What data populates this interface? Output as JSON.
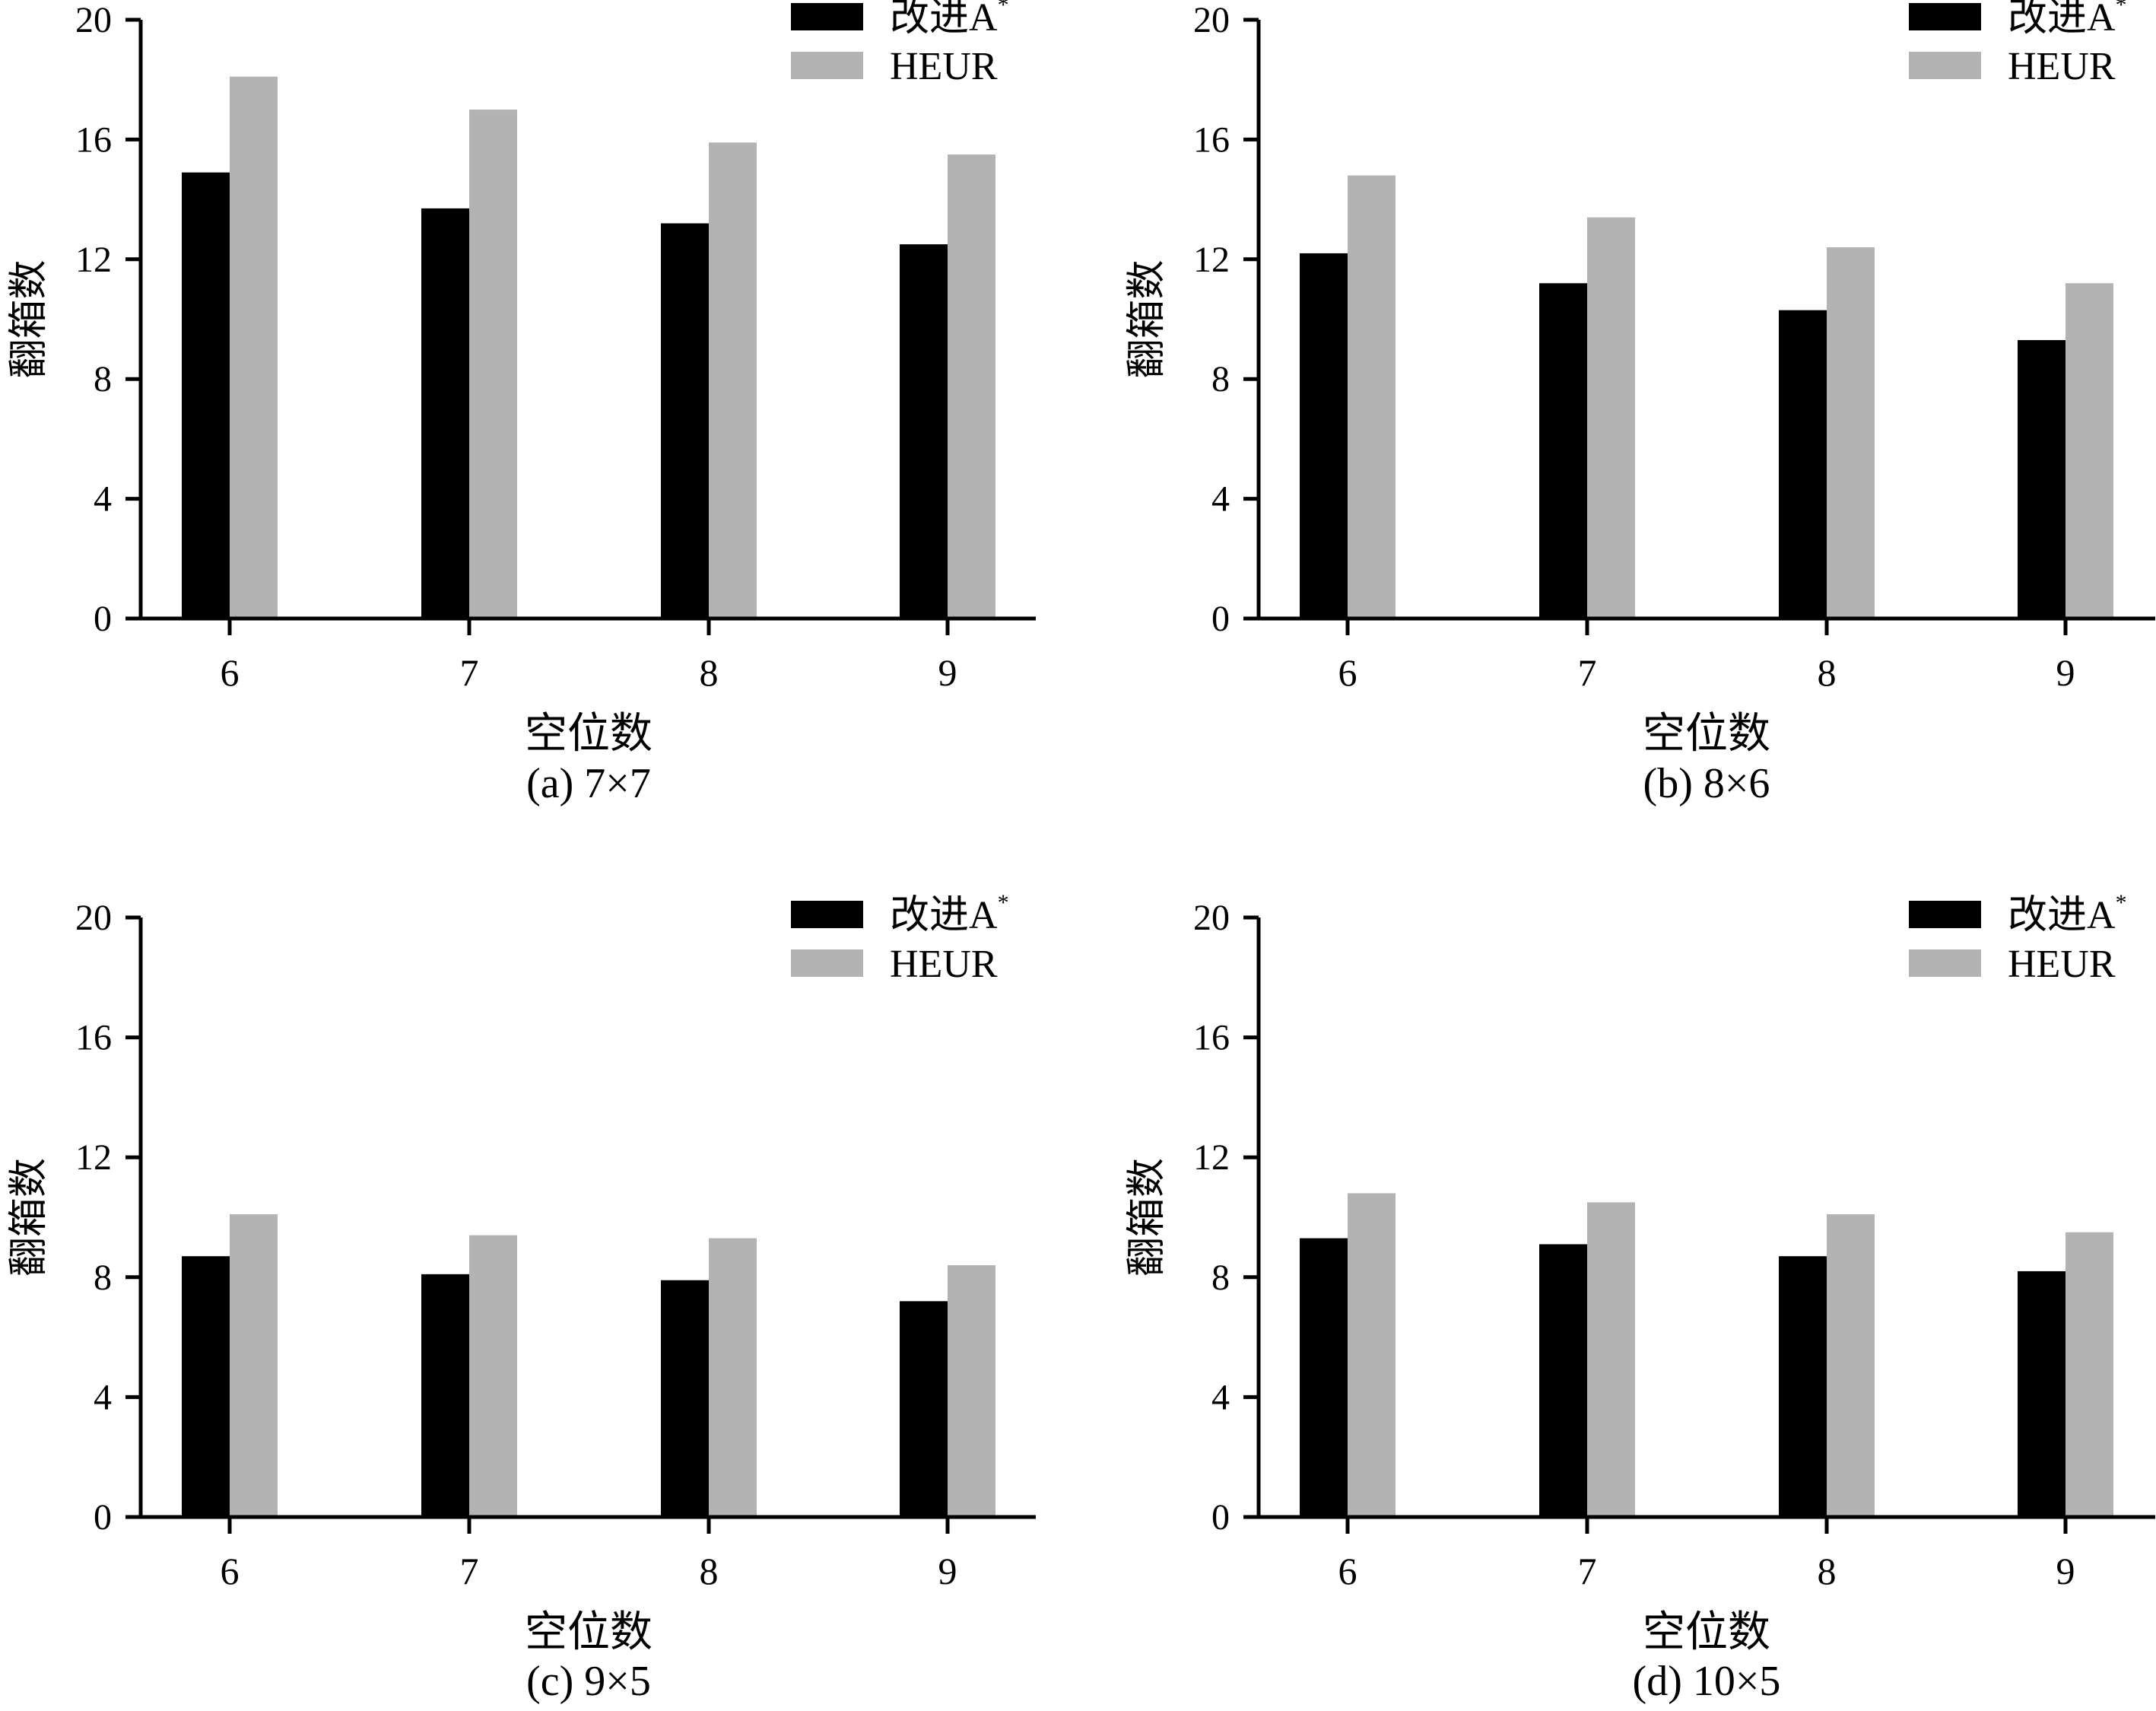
{
  "colors": {
    "series_a": "#000000",
    "series_b": "#b3b3b3",
    "axis": "#000000"
  },
  "chart_data": [
    {
      "type": "bar",
      "caption": "(a) 7×7",
      "xlabel": "空位数",
      "ylabel": "翻箱数",
      "categories": [
        "6",
        "7",
        "8",
        "9"
      ],
      "ylim": [
        0,
        20
      ],
      "yticks": [
        "0",
        "4",
        "8",
        "12",
        "16",
        "20"
      ],
      "grid": false,
      "legend_position": "top-right",
      "series": [
        {
          "name": "改进A",
          "name_sup": "*",
          "values": [
            14.9,
            13.7,
            13.2,
            12.5
          ]
        },
        {
          "name": "HEUR",
          "name_sup": "",
          "values": [
            18.1,
            17.0,
            15.9,
            15.5
          ]
        }
      ]
    },
    {
      "type": "bar",
      "caption": "(b) 8×6",
      "xlabel": "空位数",
      "ylabel": "翻箱数",
      "categories": [
        "6",
        "7",
        "8",
        "9"
      ],
      "ylim": [
        0,
        20
      ],
      "yticks": [
        "0",
        "4",
        "8",
        "12",
        "16",
        "20"
      ],
      "grid": false,
      "legend_position": "top-right",
      "series": [
        {
          "name": "改进A",
          "name_sup": "*",
          "values": [
            12.2,
            11.2,
            10.3,
            9.3
          ]
        },
        {
          "name": "HEUR",
          "name_sup": "",
          "values": [
            14.8,
            13.4,
            12.4,
            11.2
          ]
        }
      ]
    },
    {
      "type": "bar",
      "caption": "(c) 9×5",
      "xlabel": "空位数",
      "ylabel": "翻箱数",
      "categories": [
        "6",
        "7",
        "8",
        "9"
      ],
      "ylim": [
        0,
        20
      ],
      "yticks": [
        "0",
        "4",
        "8",
        "12",
        "16",
        "20"
      ],
      "grid": false,
      "legend_position": "top-right",
      "series": [
        {
          "name": "改进A",
          "name_sup": "*",
          "values": [
            8.7,
            8.1,
            7.9,
            7.2
          ]
        },
        {
          "name": "HEUR",
          "name_sup": "",
          "values": [
            10.1,
            9.4,
            9.3,
            8.4
          ]
        }
      ]
    },
    {
      "type": "bar",
      "caption": "(d) 10×5",
      "xlabel": "空位数",
      "ylabel": "翻箱数",
      "categories": [
        "6",
        "7",
        "8",
        "9"
      ],
      "ylim": [
        0,
        20
      ],
      "yticks": [
        "0",
        "4",
        "8",
        "12",
        "16",
        "20"
      ],
      "grid": false,
      "legend_position": "top-right",
      "series": [
        {
          "name": "改进A",
          "name_sup": "*",
          "values": [
            9.3,
            9.1,
            8.7,
            8.2
          ]
        },
        {
          "name": "HEUR",
          "name_sup": "",
          "values": [
            10.8,
            10.5,
            10.1,
            9.5
          ]
        }
      ]
    }
  ]
}
